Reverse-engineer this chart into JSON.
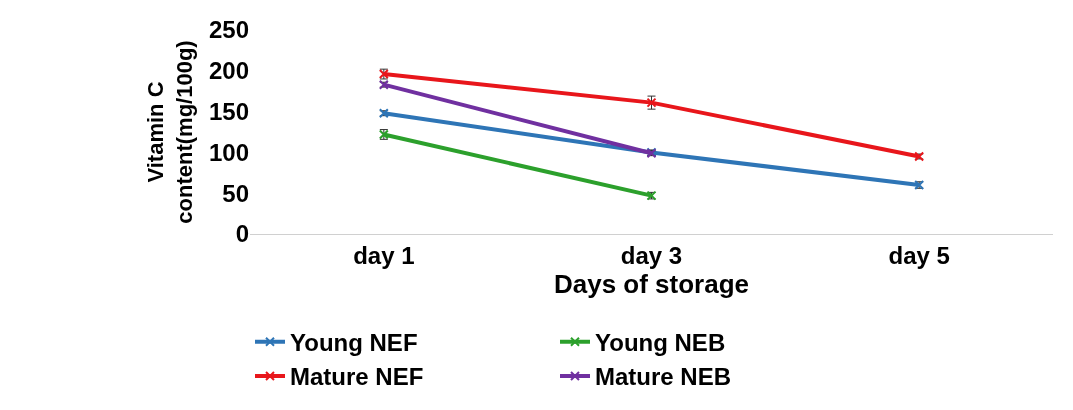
{
  "chart_data": {
    "type": "line",
    "xlabel": "Days of storage",
    "ylabel": "Vitamin C\ncontent(mg/100g)",
    "categories": [
      "day 1",
      "day 3",
      "day 5"
    ],
    "ylim": [
      0,
      250
    ],
    "yticks": [
      0,
      50,
      100,
      150,
      200,
      250
    ],
    "legend": "bottom",
    "marker": "cross",
    "line_style": "solid",
    "series": [
      {
        "name": "Young NEF",
        "color": "#2e75b6",
        "values": [
          148,
          100,
          60
        ],
        "errors": [
          3,
          3,
          4
        ]
      },
      {
        "name": "Young NEB",
        "color": "#2ca02c",
        "values": [
          122,
          47,
          null
        ],
        "errors": [
          6,
          4,
          null
        ]
      },
      {
        "name": "Mature NEF",
        "color": "#e8161b",
        "values": [
          196,
          161,
          95
        ],
        "errors": [
          6,
          8,
          3
        ]
      },
      {
        "name": "Mature NEB",
        "color": "#7030a0",
        "values": [
          183,
          99,
          null
        ],
        "errors": [
          3,
          3,
          null
        ]
      }
    ]
  }
}
